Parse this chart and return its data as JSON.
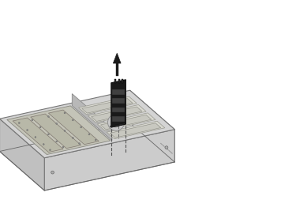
{
  "bg_color": "#ffffff",
  "fig_width": 3.75,
  "fig_height": 2.72,
  "dpi": 100,
  "chassis": {
    "outer_color": "#d8d8d8",
    "inner_color": "#e8e8e8",
    "shadow_color": "#b0b0b0",
    "edge_color": "#888888"
  },
  "motherboard": {
    "color": "#c8c8c0",
    "edge_color": "#888888"
  },
  "memory_riser": {
    "color": "#1a1a1a",
    "edge_color": "#111111",
    "highlight": "#333333"
  },
  "arrow": {
    "color": "#1a1a1a"
  },
  "dashed_line": {
    "color": "#555555",
    "style": "--",
    "linewidth": 0.8
  }
}
